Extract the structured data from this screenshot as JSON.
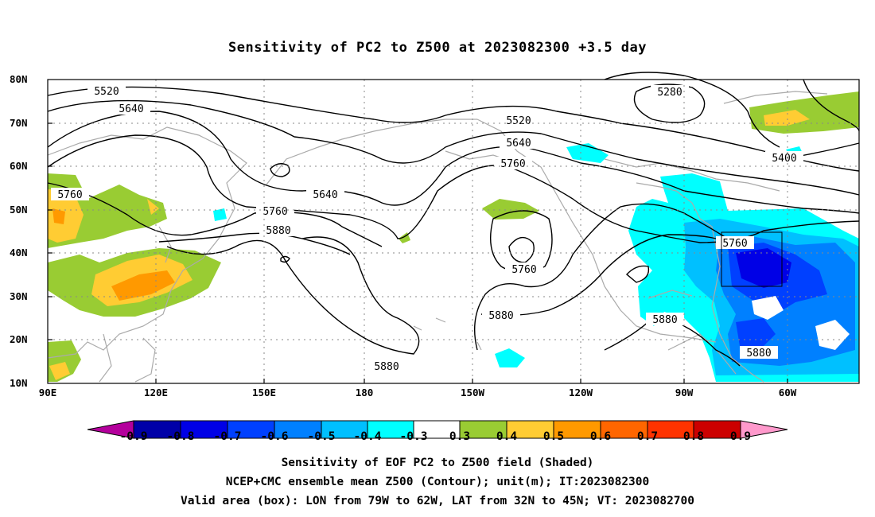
{
  "title": "Sensitivity of PC2 to Z500 at 2023082300 +3.5 day",
  "lat_labels": [
    "80N",
    "70N",
    "60N",
    "50N",
    "40N",
    "30N",
    "20N",
    "10N"
  ],
  "lon_labels": [
    "90E",
    "120E",
    "150E",
    "180",
    "150W",
    "120W",
    "90W",
    "60W"
  ],
  "contour_labels": [
    "5520",
    "5640",
    "5520",
    "5640",
    "5760",
    "5640",
    "5760",
    "5880",
    "5880",
    "5760",
    "5880",
    "5880",
    "5280",
    "5400",
    "5760",
    "5880",
    "5760"
  ],
  "colorbar": {
    "labels": [
      "-0.9",
      "-0.8",
      "-0.7",
      "-0.6",
      "-0.5",
      "-0.4",
      "-0.3",
      "0.3",
      "0.4",
      "0.5",
      "0.6",
      "0.7",
      "0.8",
      "0.9"
    ],
    "colors": [
      "#b4009c",
      "#0000a8",
      "#0000e6",
      "#0040ff",
      "#0080ff",
      "#00c0ff",
      "#00ffff",
      "#ffffff",
      "#99cc33",
      "#ffcc33",
      "#ff9900",
      "#ff6600",
      "#ff3300",
      "#cc0000",
      "#ff99cc"
    ]
  },
  "captions": {
    "line1": "Sensitivity of EOF PC2 to Z500 field (Shaded)",
    "line2": "NCEP+CMC ensemble mean Z500 (Contour); unit(m); IT:2023082300",
    "line3": "Valid area (box): LON from 79W to 62W, LAT from 32N to 45N; VT: 2023082700"
  }
}
